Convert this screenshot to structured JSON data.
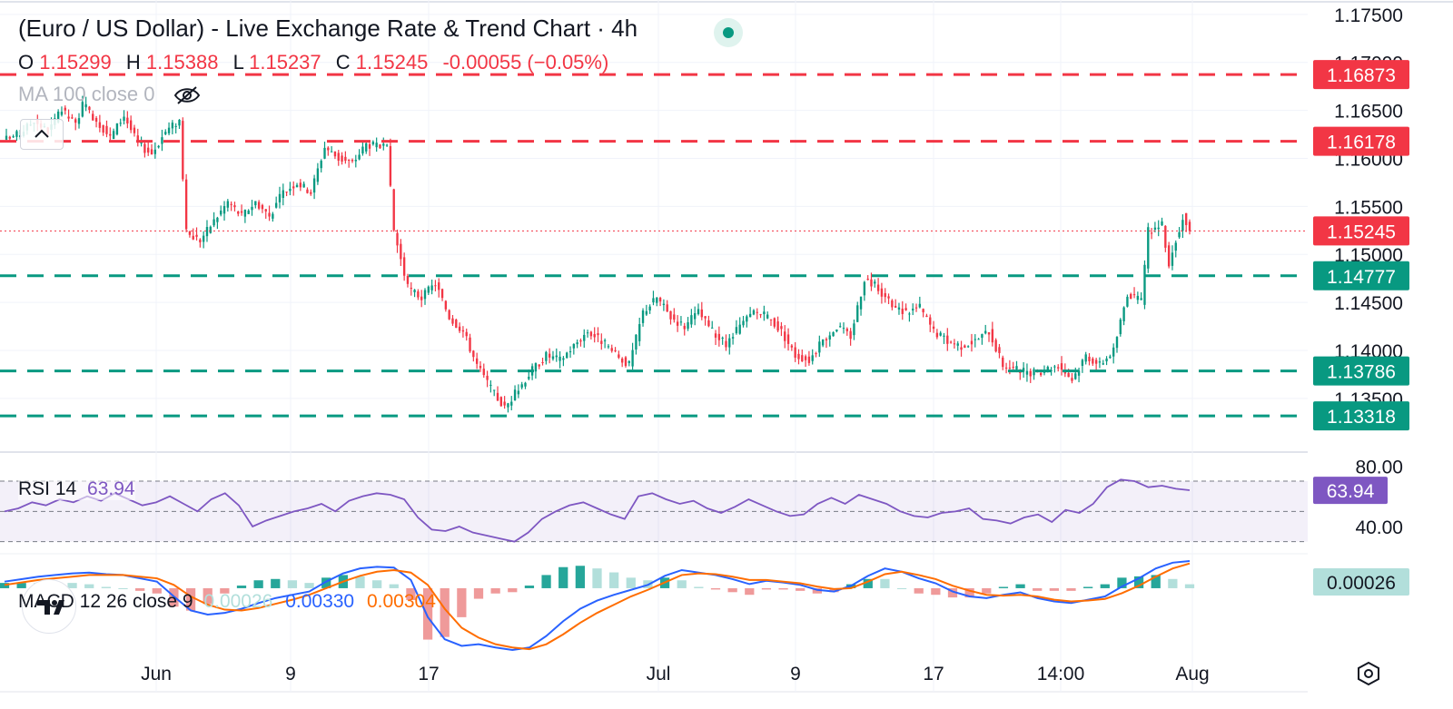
{
  "header": {
    "title": "(Euro / US Dollar) - Live Exchange Rate & Trend Chart · 4h",
    "live_icon": "live-status-dot",
    "ohlc": {
      "o_label": "O",
      "o_value": "1.15299",
      "h_label": "H",
      "h_value": "1.15388",
      "l_label": "L",
      "l_value": "1.15237",
      "c_label": "C",
      "c_value": "1.15245",
      "change": "-0.00055 (−0.05%)"
    },
    "ma_label": "MA 100 close 0",
    "ma_icon": "eye-off-icon",
    "collapse_icon": "chevron-up-icon"
  },
  "indicators": {
    "rsi": {
      "label": "RSI 14",
      "value": "63.94"
    },
    "macd": {
      "label": "MACD 12 26 close 9",
      "hist": "0.00026",
      "macd": "0.00330",
      "signal": "0.00304"
    }
  },
  "colors": {
    "up": "#089981",
    "down": "#f23645",
    "resistance": "#f23645",
    "support": "#089981",
    "rsi": "#7e57c2",
    "macd_line": "#2962ff",
    "signal_line": "#ff6d00",
    "hist_up": "#26a69a",
    "hist_up_fade": "#b2dfdb",
    "hist_down": "#ef9a9a"
  },
  "footer": {
    "logo_icon": "tradingview-logo-icon",
    "settings_icon": "settings-hexagon-icon"
  },
  "chart_data": [
    {
      "type": "candlestick",
      "symbol": "EURUSD",
      "interval": "4h",
      "x_ticks": [
        "Jun",
        "9",
        "17",
        "Jul",
        "9",
        "17",
        "14:00",
        "Aug"
      ],
      "y_ticks": [
        "1.17500",
        "1.17000",
        "1.16500",
        "1.16000",
        "1.15500",
        "1.15000",
        "1.14500",
        "1.14000",
        "1.13500"
      ],
      "ylim": [
        1.1295,
        1.1765
      ],
      "last_price": 1.15245,
      "horizontal_levels": [
        {
          "value": 1.16873,
          "label": "1.16873",
          "kind": "resistance"
        },
        {
          "value": 1.16178,
          "label": "1.16178",
          "kind": "resistance"
        },
        {
          "value": 1.14777,
          "label": "1.14777",
          "kind": "support"
        },
        {
          "value": 1.13786,
          "label": "1.13786",
          "kind": "support"
        },
        {
          "value": 1.13318,
          "label": "1.13318",
          "kind": "support"
        }
      ],
      "close_path": [
        [
          0,
          1.162
        ],
        [
          4,
          1.1626
        ],
        [
          8,
          1.164
        ],
        [
          12,
          1.1628
        ],
        [
          16,
          1.165
        ],
        [
          20,
          1.1635
        ],
        [
          22,
          1.1656
        ],
        [
          26,
          1.164
        ],
        [
          30,
          1.1622
        ],
        [
          34,
          1.1645
        ],
        [
          38,
          1.1615
        ],
        [
          42,
          1.1605
        ],
        [
          46,
          1.1628
        ],
        [
          50,
          1.164
        ],
        [
          52,
          1.1522
        ],
        [
          56,
          1.1515
        ],
        [
          60,
          1.1535
        ],
        [
          64,
          1.1555
        ],
        [
          68,
          1.154
        ],
        [
          72,
          1.1555
        ],
        [
          76,
          1.154
        ],
        [
          80,
          1.1565
        ],
        [
          84,
          1.1575
        ],
        [
          88,
          1.1565
        ],
        [
          92,
          1.1612
        ],
        [
          96,
          1.16
        ],
        [
          100,
          1.1595
        ],
        [
          104,
          1.1615
        ],
        [
          108,
          1.1612
        ],
        [
          110,
          1.161
        ],
        [
          112,
          1.1525
        ],
        [
          116,
          1.1465
        ],
        [
          120,
          1.1455
        ],
        [
          124,
          1.147
        ],
        [
          128,
          1.1435
        ],
        [
          132,
          1.142
        ],
        [
          136,
          1.1385
        ],
        [
          140,
          1.136
        ],
        [
          144,
          1.134
        ],
        [
          148,
          1.136
        ],
        [
          152,
          1.138
        ],
        [
          156,
          1.1395
        ],
        [
          160,
          1.139
        ],
        [
          164,
          1.1405
        ],
        [
          168,
          1.142
        ],
        [
          172,
          1.141
        ],
        [
          176,
          1.1395
        ],
        [
          180,
          1.1385
        ],
        [
          184,
          1.144
        ],
        [
          188,
          1.1455
        ],
        [
          192,
          1.1435
        ],
        [
          196,
          1.1425
        ],
        [
          200,
          1.144
        ],
        [
          204,
          1.142
        ],
        [
          208,
          1.1405
        ],
        [
          212,
          1.1425
        ],
        [
          216,
          1.144
        ],
        [
          220,
          1.1435
        ],
        [
          224,
          1.142
        ],
        [
          228,
          1.1395
        ],
        [
          232,
          1.139
        ],
        [
          236,
          1.141
        ],
        [
          240,
          1.1425
        ],
        [
          244,
          1.1415
        ],
        [
          248,
          1.1475
        ],
        [
          252,
          1.1465
        ],
        [
          256,
          1.1445
        ],
        [
          260,
          1.144
        ],
        [
          264,
          1.1445
        ],
        [
          268,
          1.142
        ],
        [
          272,
          1.141
        ],
        [
          276,
          1.1405
        ],
        [
          280,
          1.141
        ],
        [
          284,
          1.142
        ],
        [
          288,
          1.1385
        ],
        [
          292,
          1.138
        ],
        [
          296,
          1.1375
        ],
        [
          300,
          1.138
        ],
        [
          304,
          1.1385
        ],
        [
          308,
          1.137
        ],
        [
          312,
          1.1395
        ],
        [
          316,
          1.1385
        ],
        [
          320,
          1.14
        ],
        [
          324,
          1.146
        ],
        [
          328,
          1.145
        ],
        [
          330,
          1.1525
        ],
        [
          334,
          1.153
        ],
        [
          336,
          1.149
        ],
        [
          340,
          1.154
        ],
        [
          342,
          1.1525
        ]
      ]
    },
    {
      "type": "line",
      "indicator": "RSI 14",
      "ylim": [
        25,
        85
      ],
      "bands": [
        30,
        50,
        70
      ],
      "y_ticks": [
        "80.00",
        "40.00"
      ],
      "values": [
        50,
        52,
        56,
        54,
        58,
        56,
        60,
        57,
        62,
        58,
        54,
        56,
        60,
        55,
        50,
        58,
        62,
        54,
        40,
        44,
        47,
        50,
        52,
        55,
        50,
        57,
        60,
        62,
        61,
        58,
        46,
        38,
        37,
        40,
        36,
        34,
        32,
        30,
        36,
        45,
        50,
        54,
        56,
        52,
        48,
        45,
        60,
        62,
        58,
        55,
        57,
        52,
        49,
        53,
        58,
        54,
        50,
        47,
        48,
        55,
        59,
        55,
        61,
        58,
        55,
        50,
        47,
        46,
        49,
        50,
        52,
        45,
        44,
        42,
        46,
        48,
        43,
        51,
        49,
        55,
        66,
        71,
        70,
        66,
        67,
        65,
        64
      ],
      "last": 63.94
    },
    {
      "type": "line",
      "indicator": "MACD 12 26 close 9",
      "ylim": [
        -0.0075,
        0.0033
      ],
      "macd": [
        0.0008,
        0.0011,
        0.0014,
        0.0016,
        0.0018,
        0.0019,
        0.0017,
        0.0016,
        0.0012,
        0.0008,
        -0.001,
        -0.0027,
        -0.0032,
        -0.003,
        -0.0025,
        -0.0018,
        -0.0012,
        -0.0008,
        -0.0004,
        0.0008,
        0.0018,
        0.0024,
        0.0026,
        0.0025,
        0.001,
        -0.0035,
        -0.0062,
        -0.007,
        -0.0068,
        -0.0072,
        -0.0075,
        -0.0072,
        -0.0058,
        -0.004,
        -0.0025,
        -0.0015,
        -0.0008,
        -0.0002,
        0.0004,
        0.0015,
        0.0022,
        0.0019,
        0.0016,
        0.0011,
        0.0005,
        0.0009,
        0.0007,
        0.0004,
        -0.0002,
        -0.0004,
        0.0003,
        0.0015,
        0.0024,
        0.002,
        0.0012,
        0.0006,
        -0.0004,
        -0.001,
        -0.0012,
        -0.0008,
        -0.0005,
        -0.0012,
        -0.0016,
        -0.0018,
        -0.0014,
        -0.001,
        0.0002,
        0.0012,
        0.0024,
        0.0031,
        0.0033
      ],
      "signal": [
        0.0004,
        0.0007,
        0.001,
        0.0012,
        0.0014,
        0.0016,
        0.0016,
        0.0016,
        0.0014,
        0.0012,
        0.0004,
        -0.001,
        -0.002,
        -0.0026,
        -0.0027,
        -0.0024,
        -0.0019,
        -0.0014,
        -0.0008,
        0.0,
        0.0008,
        0.0015,
        0.002,
        0.0022,
        0.0019,
        0.0004,
        -0.0025,
        -0.0048,
        -0.006,
        -0.0068,
        -0.0072,
        -0.0074,
        -0.0068,
        -0.0056,
        -0.0042,
        -0.003,
        -0.002,
        -0.001,
        -0.0002,
        0.0007,
        0.0016,
        0.0018,
        0.0017,
        0.0014,
        0.001,
        0.001,
        0.0008,
        0.0006,
        0.0002,
        -0.0001,
        0.0,
        0.0008,
        0.0017,
        0.002,
        0.0016,
        0.0011,
        0.0003,
        -0.0003,
        -0.0008,
        -0.0009,
        -0.0008,
        -0.001,
        -0.0014,
        -0.0016,
        -0.0015,
        -0.0013,
        -0.0006,
        0.0003,
        0.0014,
        0.0024,
        0.003
      ],
      "hist_last": 0.00026
    }
  ]
}
